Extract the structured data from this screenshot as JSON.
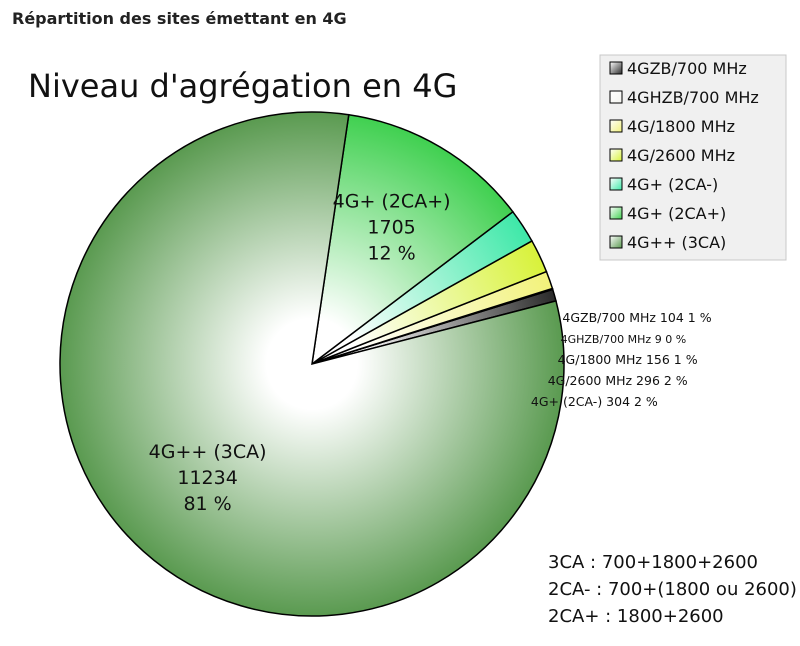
{
  "page": {
    "heading": "Répartition des sites émettant en 4G"
  },
  "chart_data": {
    "type": "pie",
    "title": "Niveau d'agrégation en 4G",
    "slices": [
      {
        "name": "4GZB/700 MHz",
        "value": 104,
        "percent": "1 %",
        "color": "#2a2a2a"
      },
      {
        "name": "4GHZB/700 MHz",
        "value": 9,
        "percent": "0 %",
        "color": "#f4f4f0"
      },
      {
        "name": "4G/1800 MHz",
        "value": 156,
        "percent": "1 %",
        "color": "#f2f27a"
      },
      {
        "name": "4G/2600 MHz",
        "value": 296,
        "percent": "2 %",
        "color": "#d8f23a"
      },
      {
        "name": "4G+ (2CA-)",
        "value": 304,
        "percent": "2 %",
        "color": "#3ee8a8"
      },
      {
        "name": "4G+ (2CA+)",
        "value": 1705,
        "percent": "12 %",
        "color": "#40d050"
      },
      {
        "name": "4G++ (3CA)",
        "value": 11234,
        "percent": "81 %",
        "color": "#5a9a50"
      }
    ],
    "legend_position": "top-right"
  },
  "notes": [
    "3CA : 700+1800+2600",
    "2CA- : 700+(1800 ou 2600)",
    "2CA+ : 1800+2600"
  ]
}
